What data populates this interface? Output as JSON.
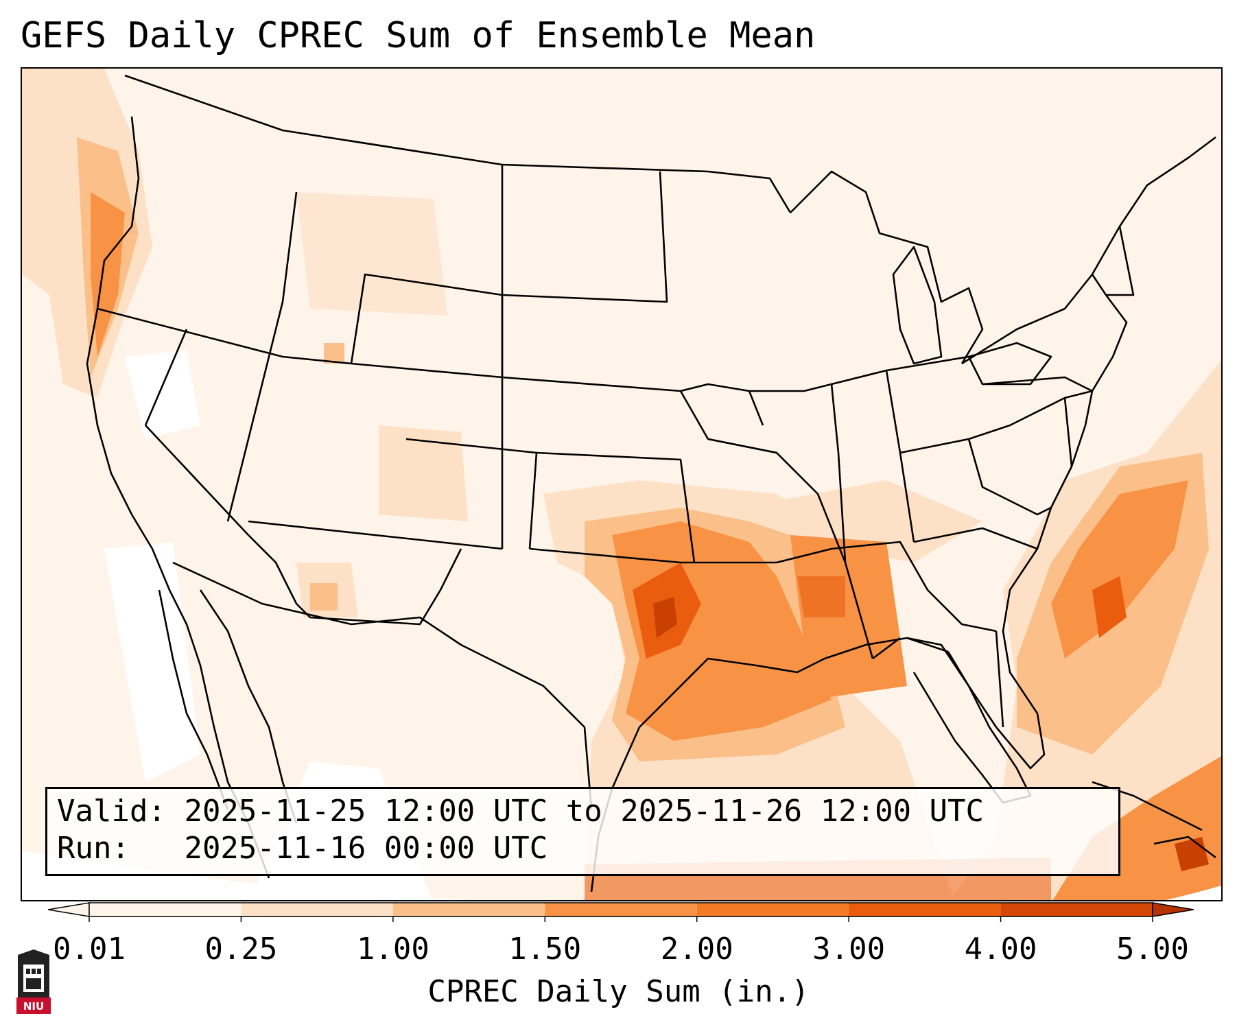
{
  "title": "GEFS Daily CPREC Sum of Ensemble Mean",
  "info": {
    "valid_label": "Valid:",
    "valid_value": "2025-11-25 12:00 UTC to 2025-11-26 12:00 UTC",
    "run_label": "Run:",
    "run_value": "2025-11-16 00:00 UTC"
  },
  "colorbar": {
    "label": "CPREC Daily Sum (in.)",
    "ticks": [
      "0.01",
      "0.25",
      "1.00",
      "1.50",
      "2.00",
      "3.00",
      "4.00",
      "5.00"
    ],
    "colors": [
      "#fff4ea",
      "#fde1c7",
      "#fbc08a",
      "#f89346",
      "#f47a24",
      "#ea5d0e",
      "#d44605",
      "#b53301"
    ],
    "extend": "both"
  },
  "logo": {
    "text": "NIU",
    "primary_color": "#c8102e"
  },
  "map": {
    "projection": "Lambert conformal",
    "region": "Continental United States",
    "colors": {
      "very_light": "#fff4ea",
      "light": "#fde1c7",
      "medium": "#fbc08a",
      "orange": "#f89346",
      "dark_orange": "#ea5d0e",
      "darkest": "#c94003"
    }
  }
}
